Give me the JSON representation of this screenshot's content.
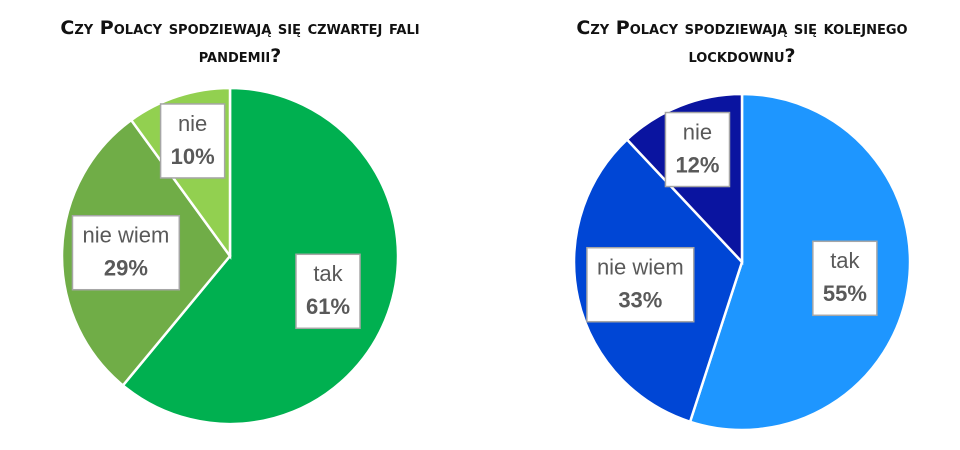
{
  "chart_data": [
    {
      "type": "pie",
      "title": "Czy Polacy spodziewają się czwartej fali pandemii?",
      "categories": [
        "tak",
        "nie wiem",
        "nie"
      ],
      "values": [
        61,
        29,
        10
      ],
      "value_labels": [
        "61%",
        "29%",
        "10%"
      ],
      "colors": [
        "#00b050",
        "#70ad47",
        "#92d050"
      ]
    },
    {
      "type": "pie",
      "title": "Czy Polacy spodziewają się kolejnego lockdownu?",
      "categories": [
        "tak",
        "nie wiem",
        "nie"
      ],
      "values": [
        55,
        33,
        12
      ],
      "value_labels": [
        "55%",
        "33%",
        "12%"
      ],
      "colors": [
        "#1e96ff",
        "#0046d5",
        "#0a14a0"
      ]
    }
  ]
}
